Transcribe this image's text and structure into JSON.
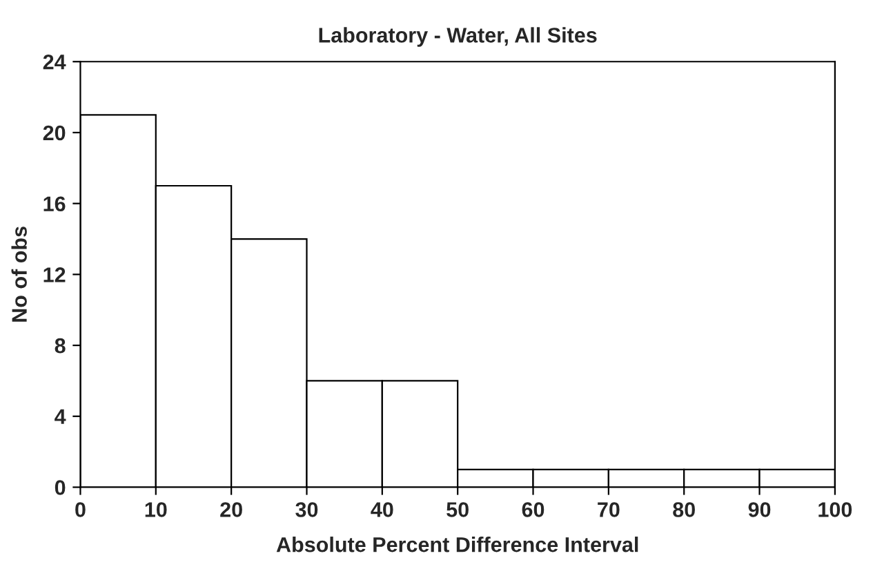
{
  "chart_data": {
    "type": "histogram",
    "title": "Laboratory - Water, All Sites",
    "xlabel": "Absolute Percent Difference Interval",
    "ylabel": "No of obs",
    "bins": [
      0,
      10,
      20,
      30,
      40,
      50,
      60,
      70,
      80,
      90,
      100
    ],
    "values": [
      21,
      17,
      14,
      6,
      6,
      1,
      1,
      1,
      1,
      1
    ],
    "color": "#ffffff",
    "xlim": [
      0,
      100
    ],
    "xticks": [
      0,
      10,
      20,
      30,
      40,
      50,
      60,
      70,
      80,
      90,
      100
    ],
    "ylim": [
      0,
      24
    ],
    "yticks": [
      0,
      4,
      8,
      12,
      16,
      20,
      24
    ],
    "grid": false
  }
}
